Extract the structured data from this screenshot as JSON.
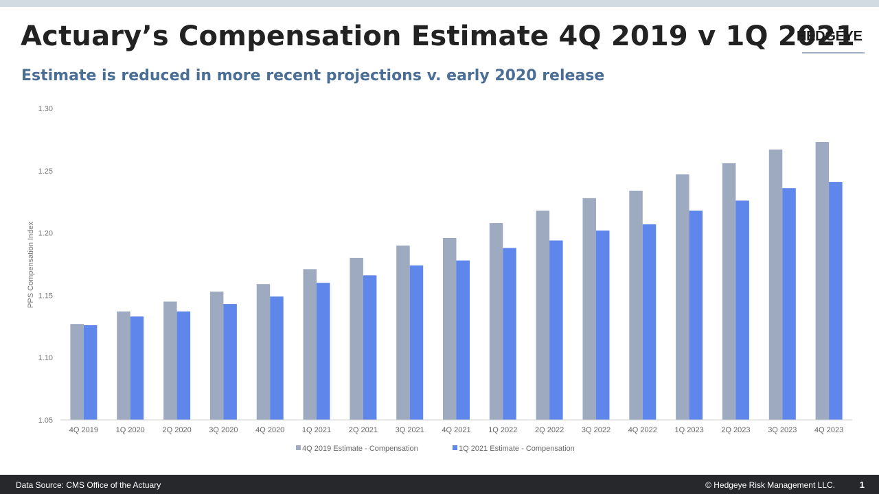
{
  "header": {
    "title": "Actuary’s Compensation Estimate 4Q 2019 v 1Q 2021",
    "subtitle": "Estimate is reduced in more recent projections v. early 2020 release",
    "logo_text": "HEDGEYE"
  },
  "footer": {
    "source": "Data Source: CMS Office of the Actuary",
    "copyright": "© Hedgeye Risk Management LLC.",
    "page_number": "1"
  },
  "colors": {
    "series_1": "#9eaac0",
    "series_2": "#5f86ea",
    "subtitle": "#4a6e95"
  },
  "chart_data": {
    "type": "bar",
    "categories": [
      "4Q 2019",
      "1Q 2020",
      "2Q 2020",
      "3Q 2020",
      "4Q 2020",
      "1Q 2021",
      "2Q 2021",
      "3Q 2021",
      "4Q 2021",
      "1Q 2022",
      "2Q 2022",
      "3Q 2022",
      "4Q 2022",
      "1Q 2023",
      "2Q 2023",
      "3Q 2023",
      "4Q 2023"
    ],
    "series": [
      {
        "name": "4Q 2019 Estimate  - Compensation",
        "values": [
          1.127,
          1.137,
          1.145,
          1.153,
          1.159,
          1.171,
          1.18,
          1.19,
          1.196,
          1.208,
          1.218,
          1.228,
          1.234,
          1.247,
          1.256,
          1.267,
          1.273
        ]
      },
      {
        "name": "1Q 2021 Estimate - Compensation",
        "values": [
          1.126,
          1.133,
          1.137,
          1.143,
          1.149,
          1.16,
          1.166,
          1.174,
          1.178,
          1.188,
          1.194,
          1.202,
          1.207,
          1.218,
          1.226,
          1.236,
          1.241
        ]
      }
    ],
    "title": "",
    "xlabel": "",
    "ylabel": "PPS Compensation Index",
    "ylim": [
      1.05,
      1.3
    ],
    "yticks": [
      "1.05",
      "1.10",
      "1.15",
      "1.20",
      "1.25",
      "1.30"
    ],
    "grid": false,
    "legend_position": "bottom"
  }
}
